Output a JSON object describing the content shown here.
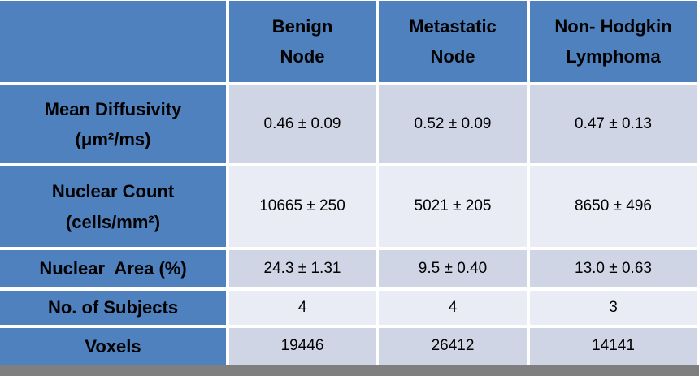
{
  "table": {
    "header": {
      "corner": "",
      "columns": [
        "Benign\nNode",
        "Metastatic\nNode",
        "Non- Hodgkin\nLymphoma"
      ]
    },
    "rows": [
      {
        "label": "Mean Diffusivity\n(μm²/ms)",
        "values": [
          "0.46 ± 0.09",
          "0.52 ± 0.09",
          "0.47 ± 0.13"
        ]
      },
      {
        "label": "Nuclear Count\n(cells/mm²)",
        "values": [
          "10665 ± 250",
          "5021 ± 205",
          "8650 ± 496"
        ]
      },
      {
        "label": "Nuclear  Area (%)",
        "values": [
          "24.3 ± 1.31",
          "9.5 ± 0.40",
          "13.0 ± 0.63"
        ]
      },
      {
        "label": "No. of Subjects",
        "values": [
          "4",
          "4",
          "3"
        ]
      },
      {
        "label": "Voxels",
        "values": [
          "19446",
          "26412",
          "14141"
        ]
      }
    ],
    "colors": {
      "header_blue": "#4E81BD",
      "band_dark": "#D0D5E6",
      "band_light": "#E9EBF5",
      "bottom_bar_gray": "#7F7F7F",
      "grid_white": "#FFFFFF",
      "text": "#000000"
    }
  }
}
